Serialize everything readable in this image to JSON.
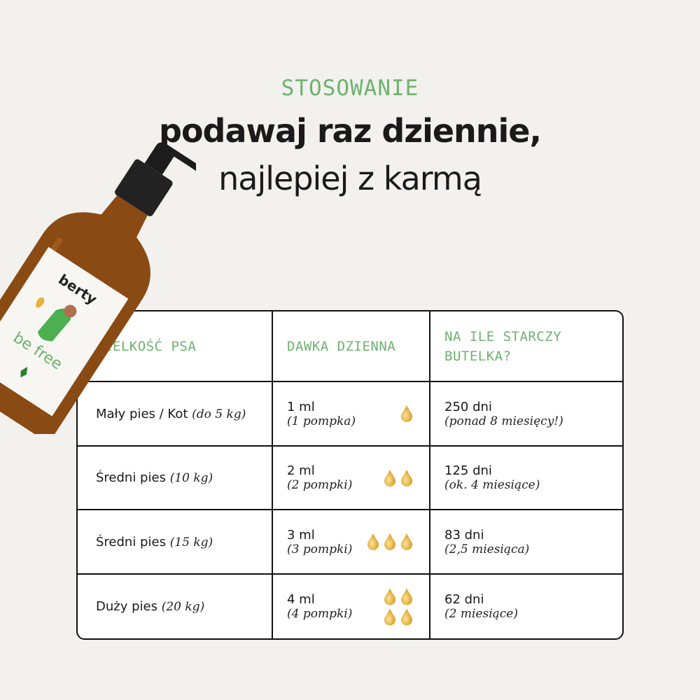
{
  "header": {
    "eyebrow": "STOSOWANIE",
    "title_line1": "podawaj raz dziennie,",
    "title_line2": "najlepiej z karmą"
  },
  "product": {
    "brand": "berty",
    "name": "be free"
  },
  "colors": {
    "accent": "#6db36f",
    "background": "#f2f1ee",
    "drop": "#e8b23a"
  },
  "table": {
    "headers": [
      "WIELKOŚĆ PSA",
      "DAWKA DZIENNA",
      "NA ILE STARCZY BUTELKA?"
    ],
    "rows": [
      {
        "size": "Mały pies / Kot",
        "weight": "(do 5 kg)",
        "dose": "1 ml",
        "pumps": "(1 pompka)",
        "drops": 1,
        "days": "250 dni",
        "duration": "(ponad 8 miesięcy!)"
      },
      {
        "size": "Średni pies",
        "weight": "(10 kg)",
        "dose": "2 ml",
        "pumps": "(2 pompki)",
        "drops": 2,
        "days": "125 dni",
        "duration": "(ok. 4 miesiące)"
      },
      {
        "size": "Średni pies",
        "weight": "(15 kg)",
        "dose": "3 ml",
        "pumps": "(3 pompki)",
        "drops": 3,
        "days": "83 dni",
        "duration": "(2,5 miesiąca)"
      },
      {
        "size": "Duży pies",
        "weight": "(20 kg)",
        "dose": "4 ml",
        "pumps": "(4 pompki)",
        "drops": 4,
        "days": "62 dni",
        "duration": "(2 miesiące)"
      }
    ]
  }
}
